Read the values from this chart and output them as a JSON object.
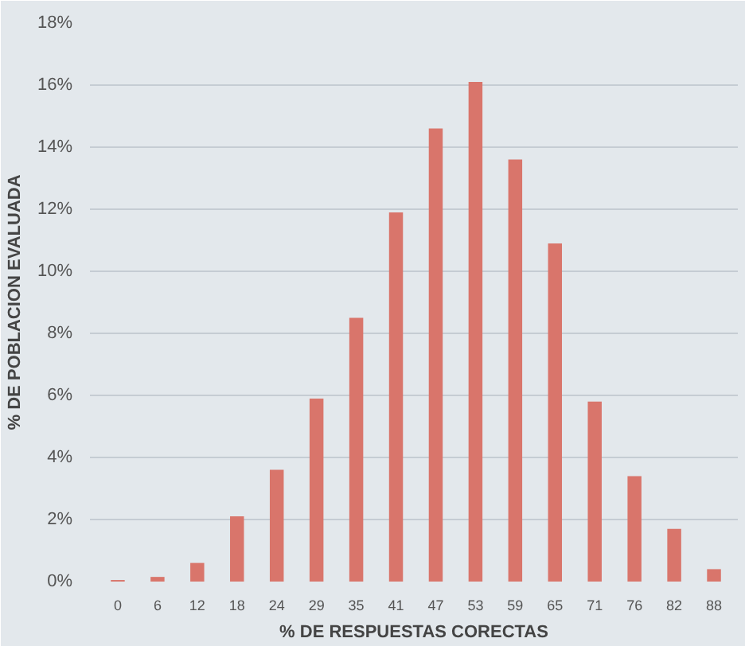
{
  "chart_data": {
    "type": "bar",
    "xlabel": "% DE RESPUESTAS CORECTAS",
    "ylabel": "% DE POBLACION EVALUADA",
    "categories": [
      "0",
      "6",
      "12",
      "18",
      "24",
      "29",
      "35",
      "41",
      "47",
      "53",
      "59",
      "65",
      "71",
      "76",
      "82",
      "88"
    ],
    "values": [
      0.05,
      0.15,
      0.6,
      2.1,
      3.6,
      5.9,
      8.5,
      11.9,
      14.6,
      16.1,
      13.6,
      10.9,
      5.8,
      3.4,
      1.7,
      0.4
    ],
    "color": "#d9756b",
    "ylim": [
      0,
      18
    ],
    "yticks": [
      {
        "value": 0,
        "label": "0%"
      },
      {
        "value": 2,
        "label": "2%"
      },
      {
        "value": 4,
        "label": "4%"
      },
      {
        "value": 6,
        "label": "6%"
      },
      {
        "value": 8,
        "label": "8%"
      },
      {
        "value": 10,
        "label": "10%"
      },
      {
        "value": 12,
        "label": "12%"
      },
      {
        "value": 14,
        "label": "14%"
      },
      {
        "value": 16,
        "label": "16%"
      },
      {
        "value": 18,
        "label": "18%"
      }
    ],
    "grid": "y"
  }
}
